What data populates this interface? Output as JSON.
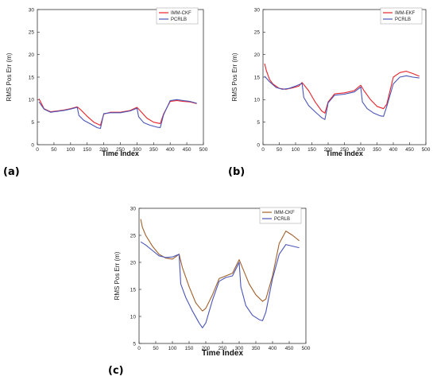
{
  "colors": {
    "imm": "#e8232a",
    "imm_c": "#a0602a",
    "pcrlb": "#4a55b8",
    "axis": "#333333",
    "grid": "#dddddd"
  },
  "chart_data": [
    {
      "panel_label": "(a)",
      "type": "line",
      "xlabel": "Time Index",
      "ylabel": "RMS Pos Err (m)",
      "xlim": [
        0,
        500
      ],
      "ylim": [
        0,
        30
      ],
      "xticks": [
        0,
        50,
        100,
        150,
        200,
        250,
        300,
        350,
        400,
        450,
        500
      ],
      "yticks": [
        0,
        5,
        10,
        15,
        20,
        25,
        30
      ],
      "legend_position": "top-right",
      "series": [
        {
          "name": "IMM-CKF",
          "color": "red",
          "x": [
            5,
            20,
            40,
            60,
            80,
            100,
            120,
            130,
            150,
            170,
            190,
            200,
            220,
            250,
            280,
            300,
            310,
            330,
            350,
            370,
            380,
            400,
            420,
            440,
            460,
            480
          ],
          "y": [
            10.2,
            8.0,
            7.3,
            7.5,
            7.7,
            8.0,
            8.4,
            7.8,
            6.3,
            5.0,
            4.3,
            6.8,
            7.2,
            7.2,
            7.6,
            8.3,
            7.5,
            5.9,
            5.0,
            4.7,
            6.8,
            9.6,
            9.8,
            9.6,
            9.5,
            9.1
          ]
        },
        {
          "name": "PCRLB",
          "color": "blue",
          "x": [
            5,
            20,
            40,
            60,
            80,
            100,
            120,
            125,
            140,
            160,
            180,
            190,
            200,
            220,
            250,
            280,
            300,
            305,
            320,
            340,
            360,
            370,
            380,
            400,
            420,
            440,
            460,
            480
          ],
          "y": [
            9.5,
            7.9,
            7.2,
            7.4,
            7.6,
            7.9,
            8.3,
            6.5,
            5.4,
            4.6,
            3.8,
            3.6,
            6.9,
            7.1,
            7.1,
            7.5,
            8.1,
            6.2,
            4.9,
            4.3,
            3.9,
            3.8,
            6.6,
            9.8,
            10.0,
            9.8,
            9.6,
            9.2
          ]
        }
      ]
    },
    {
      "panel_label": "(b)",
      "type": "line",
      "xlabel": "Time Index",
      "ylabel": "RMS Pos Err (m)",
      "xlim": [
        0,
        500
      ],
      "ylim": [
        0,
        30
      ],
      "xticks": [
        0,
        50,
        100,
        150,
        200,
        250,
        300,
        350,
        400,
        450,
        500
      ],
      "yticks": [
        0,
        5,
        10,
        15,
        20,
        25,
        30
      ],
      "legend_position": "top-right",
      "series": [
        {
          "name": "IMM-EKF",
          "color": "red",
          "x": [
            5,
            10,
            20,
            30,
            50,
            70,
            90,
            110,
            120,
            140,
            160,
            180,
            190,
            200,
            220,
            250,
            280,
            300,
            310,
            330,
            350,
            370,
            380,
            400,
            420,
            440,
            460,
            480
          ],
          "y": [
            18.0,
            16.5,
            14.5,
            13.5,
            12.5,
            12.3,
            12.6,
            13.0,
            13.8,
            12.0,
            9.5,
            7.5,
            7.0,
            9.5,
            11.3,
            11.5,
            12.0,
            13.2,
            12.0,
            10.0,
            8.5,
            8.0,
            9.0,
            15.0,
            16.0,
            16.3,
            15.8,
            15.2
          ]
        },
        {
          "name": "PCRLB",
          "color": "blue",
          "x": [
            5,
            20,
            40,
            60,
            80,
            100,
            120,
            125,
            140,
            160,
            180,
            190,
            200,
            220,
            250,
            280,
            300,
            305,
            320,
            340,
            360,
            370,
            380,
            400,
            420,
            440,
            460,
            480
          ],
          "y": [
            15.2,
            14.0,
            12.7,
            12.3,
            12.5,
            13.0,
            13.6,
            10.5,
            8.7,
            7.3,
            6.0,
            5.6,
            9.3,
            11.0,
            11.2,
            11.7,
            12.8,
            9.5,
            8.0,
            7.0,
            6.4,
            6.3,
            8.5,
            13.5,
            15.0,
            15.3,
            15.0,
            14.8
          ]
        }
      ]
    },
    {
      "panel_label": "(c)",
      "type": "line",
      "xlabel": "Time Index",
      "ylabel": "RMS Pos Err (m)",
      "xlim": [
        0,
        500
      ],
      "ylim": [
        5,
        30
      ],
      "xticks": [
        0,
        50,
        100,
        150,
        200,
        250,
        300,
        350,
        400,
        450,
        500
      ],
      "yticks": [
        5,
        10,
        15,
        20,
        25,
        30
      ],
      "legend_position": "top-right",
      "series": [
        {
          "name": "IMM-CKF",
          "color": "brown",
          "x": [
            5,
            10,
            20,
            40,
            60,
            80,
            100,
            120,
            130,
            150,
            170,
            190,
            200,
            220,
            240,
            260,
            280,
            300,
            310,
            330,
            350,
            370,
            380,
            400,
            420,
            440,
            460,
            480
          ],
          "y": [
            28.0,
            26.5,
            25.0,
            23.0,
            21.5,
            20.8,
            20.6,
            21.5,
            19.0,
            15.5,
            12.5,
            11.0,
            11.5,
            14.0,
            17.0,
            17.5,
            18.0,
            20.5,
            19.0,
            16.0,
            14.0,
            12.8,
            13.2,
            17.5,
            23.5,
            25.8,
            25.0,
            24.0
          ]
        },
        {
          "name": "PCRLB",
          "color": "blue",
          "x": [
            5,
            20,
            40,
            60,
            80,
            100,
            120,
            125,
            140,
            160,
            180,
            190,
            200,
            220,
            240,
            260,
            280,
            300,
            305,
            320,
            340,
            360,
            370,
            380,
            400,
            420,
            440,
            460,
            480
          ],
          "y": [
            23.8,
            23.2,
            22.2,
            21.2,
            20.9,
            21.0,
            21.5,
            16.0,
            13.5,
            11.0,
            8.8,
            7.9,
            8.8,
            13.0,
            16.5,
            17.2,
            17.5,
            20.0,
            15.5,
            12.0,
            10.2,
            9.4,
            9.2,
            10.8,
            17.0,
            21.5,
            23.3,
            23.0,
            22.7
          ]
        }
      ]
    }
  ]
}
